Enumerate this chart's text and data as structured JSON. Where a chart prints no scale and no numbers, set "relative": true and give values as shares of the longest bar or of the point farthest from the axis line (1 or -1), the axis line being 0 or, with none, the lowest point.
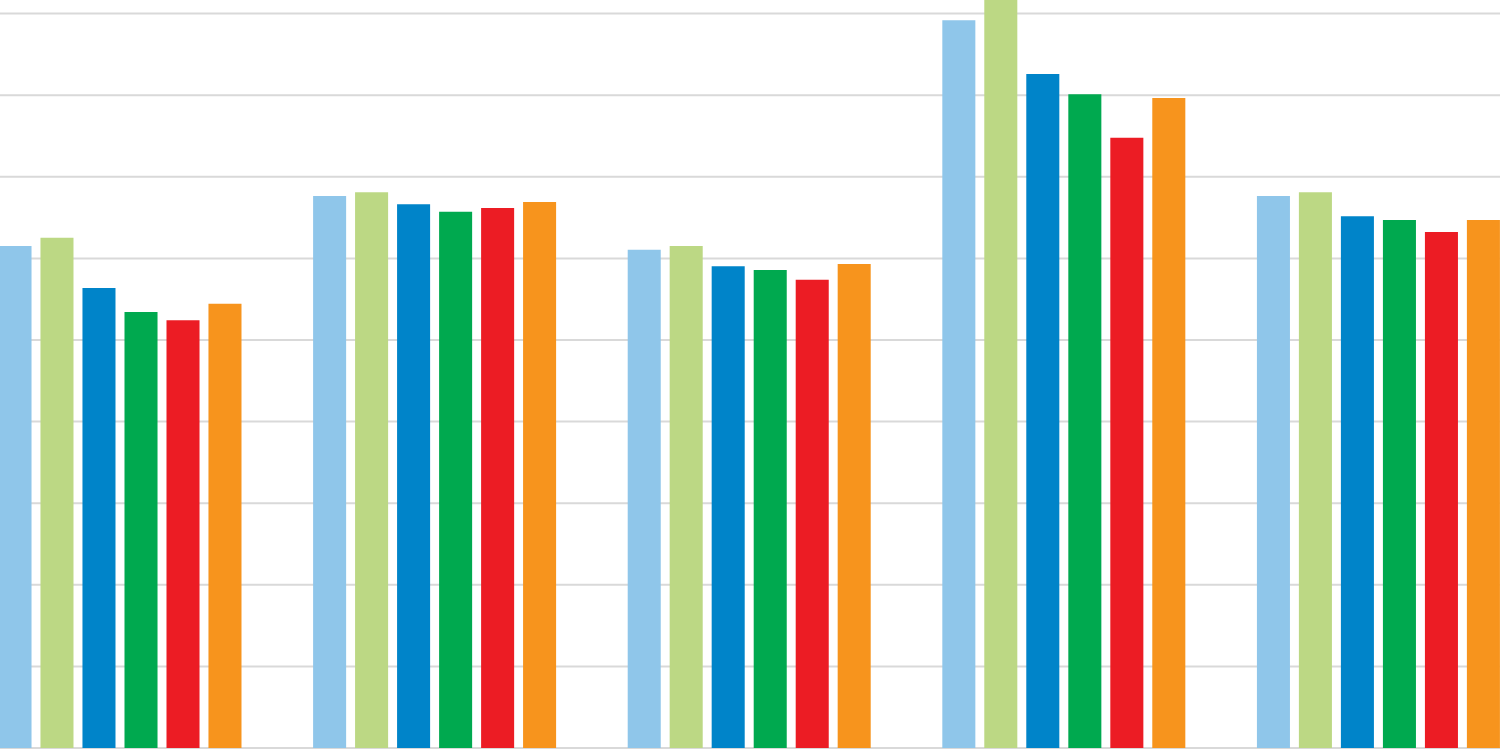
{
  "chart_data": {
    "type": "bar",
    "relative": true,
    "grid": "y",
    "categories": [
      null,
      null,
      null,
      null,
      null
    ],
    "series": [
      {
        "color": "#8fc6ea",
        "values": [
          0.671,
          0.738,
          0.666,
          0.973,
          0.738
        ]
      },
      {
        "color": "#bcd884",
        "values": [
          0.682,
          0.743,
          0.671,
          1,
          0.743
        ]
      },
      {
        "color": "#0084c9",
        "values": [
          0.615,
          0.727,
          0.644,
          0.901,
          0.711
        ]
      },
      {
        "color": "#00a94f",
        "values": [
          0.583,
          0.717,
          0.639,
          0.874,
          0.706
        ]
      },
      {
        "color": "#ec1c24",
        "values": [
          0.572,
          0.722,
          0.626,
          0.816,
          0.69
        ]
      },
      {
        "color": "#f7941d",
        "values": [
          0.594,
          0.73,
          0.647,
          0.869,
          0.706
        ]
      }
    ]
  }
}
